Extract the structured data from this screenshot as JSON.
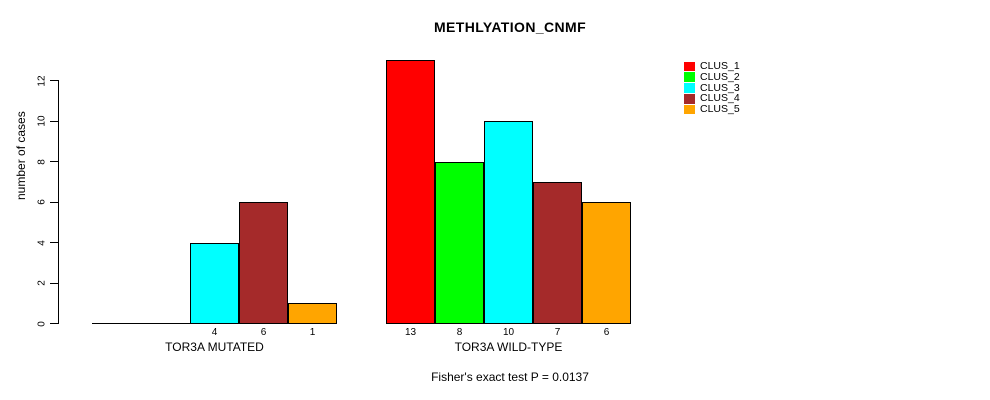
{
  "chart_data": {
    "type": "bar",
    "title": "METHLYATION_CNMF",
    "ylabel": "number of cases",
    "xlabel": "",
    "ylim": [
      0,
      13
    ],
    "yticks": [
      0,
      2,
      4,
      6,
      8,
      10,
      12
    ],
    "grid": false,
    "legend_position": "top-right",
    "clusters": [
      {
        "label": "CLUS_1",
        "color": "#FF0000"
      },
      {
        "label": "CLUS_2",
        "color": "#00FF00"
      },
      {
        "label": "CLUS_3",
        "color": "#00FFFF"
      },
      {
        "label": "CLUS_4",
        "color": "#A52A2A"
      },
      {
        "label": "CLUS_5",
        "color": "#FFA500"
      }
    ],
    "groups": [
      {
        "label": "TOR3A MUTATED",
        "values": [
          0,
          0,
          4,
          6,
          1
        ],
        "bar_labels": [
          "",
          "",
          "4",
          "6",
          "1"
        ]
      },
      {
        "label": "TOR3A WILD-TYPE",
        "values": [
          13,
          8,
          10,
          7,
          6
        ],
        "bar_labels": [
          "13",
          "8",
          "10",
          "7",
          "6"
        ]
      }
    ],
    "annotation": "Fisher's exact test P = 0.0137"
  }
}
